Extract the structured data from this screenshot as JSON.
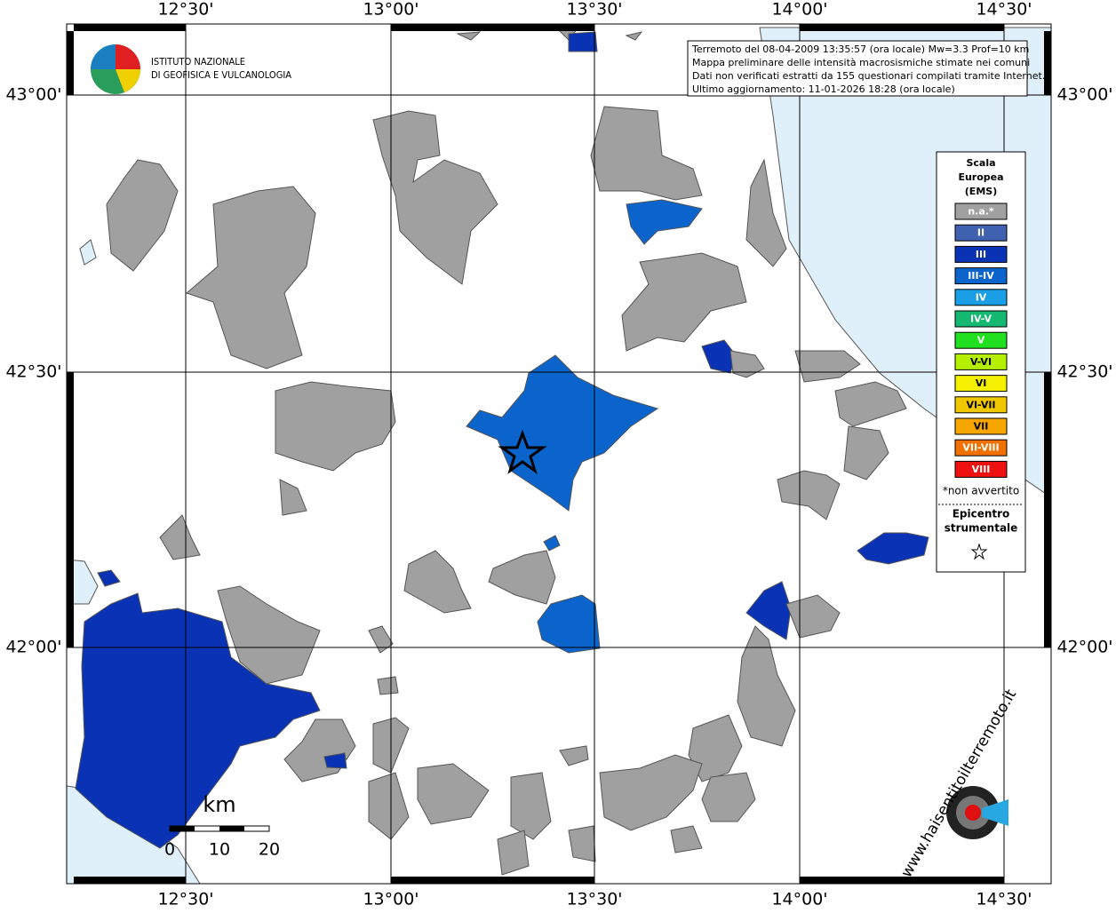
{
  "map": {
    "x_labels": [
      "12°30'",
      "13°00'",
      "13°30'",
      "14°00'",
      "14°30'"
    ],
    "y_labels": [
      "43°00'",
      "42°30'",
      "42°00'"
    ]
  },
  "logo": {
    "line1": "ISTITUTO NAZIONALE",
    "line2": "DI GEOFISICA E VULCANOLOGIA"
  },
  "info": [
    "Terremoto del 08-04-2009 13:35:57 (ora locale) Mw=3.3 Prof=10 km",
    "Mappa preliminare delle intensità macrosismiche stimate nei comuni",
    "Dati non verificati estratti da 155 questionari compilati tramite Internet.",
    "Ultimo aggiornamento: 11-01-2026 18:28 (ora locale)"
  ],
  "legend": {
    "title": [
      "Scala",
      "Europea",
      "(EMS)"
    ],
    "classes": [
      {
        "label": "n.a.*",
        "color": "#a0a0a0"
      },
      {
        "label": "II",
        "color": "#4060b0"
      },
      {
        "label": "III",
        "color": "#0a32b4"
      },
      {
        "label": "III-IV",
        "color": "#0a64cc"
      },
      {
        "label": "IV",
        "color": "#1a9ee6"
      },
      {
        "label": "IV-V",
        "color": "#14b870"
      },
      {
        "label": "V",
        "color": "#20e020"
      },
      {
        "label": "V-VI",
        "color": "#b4f000"
      },
      {
        "label": "VI",
        "color": "#f5f000"
      },
      {
        "label": "VI-VII",
        "color": "#f0c800"
      },
      {
        "label": "VII",
        "color": "#f7a500"
      },
      {
        "label": "VII-VIII",
        "color": "#f07000"
      },
      {
        "label": "VIII",
        "color": "#ee1111"
      }
    ],
    "note": "*non avvertito",
    "epicenter_label": [
      "Epicentro",
      "strumentale"
    ]
  },
  "scale_bar": {
    "unit": "km",
    "ticks": [
      0,
      10,
      20
    ]
  },
  "site_logo": "www.haisentitoilterremoto.it"
}
